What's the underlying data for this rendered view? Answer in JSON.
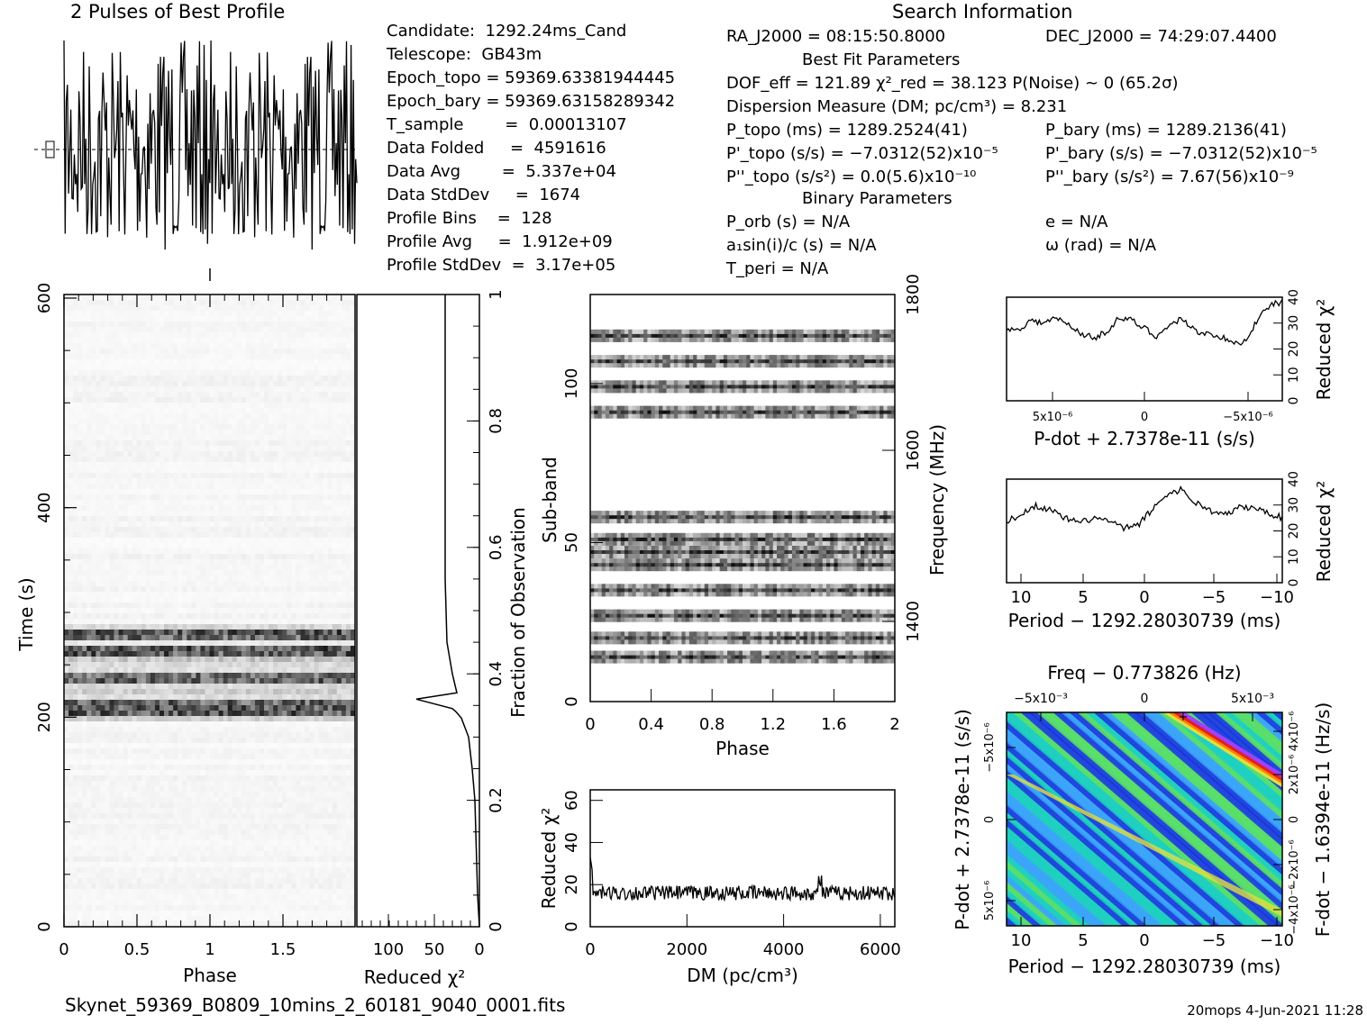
{
  "header": {
    "profile_title": "2 Pulses of Best Profile",
    "search_title": "Search Information",
    "best_fit_title": "Best Fit Parameters",
    "binary_title": "Binary Parameters"
  },
  "info_left": [
    "Candidate:  1292.24ms_Cand",
    "Telescope:  GB43m",
    "Epoch_topo = 59369.63381944445",
    "Epoch_bary = 59369.63158289342",
    "T_sample        =  0.00013107",
    "Data Folded     =  4591616",
    "Data Avg        =  5.337e+04",
    "Data StdDev     =  1674",
    "Profile Bins    =  128",
    "Profile Avg     =  1.912e+09",
    "Profile StdDev  =  3.17e+05"
  ],
  "info_mid": [
    "RA_J2000 = 08:15:50.8000",
    "DOF_eff = 121.89  χ²_red = 38.123  P(Noise) ~ 0   (65.2σ)",
    "Dispersion Measure (DM; pc/cm³) = 8.231",
    "P_topo (ms) =  1289.2524(41)",
    "P'_topo (s/s) = −7.0312(52)x10⁻⁵",
    "P''_topo (s/s²) = 0.0(5.6)x10⁻¹⁰",
    "P_orb (s) = N/A",
    "a₁sin(i)/c (s) = N/A",
    "T_peri = N/A"
  ],
  "info_right": [
    "DEC_J2000 = 74:29:07.4400",
    "P_bary (ms) =  1289.2136(41)",
    "P'_bary (s/s) = −7.0312(52)x10⁻⁵",
    "P''_bary (s/s²) =  7.67(56)x10⁻⁹",
    "e = N/A",
    "ω (rad) = N/A"
  ],
  "footer": {
    "filename": "Skynet_59369_B0809_10mins_2_60181_9040_0001.fits",
    "stamp": "20mops  4-Jun-2021 11:28"
  },
  "chart_data": [
    {
      "id": "profile",
      "type": "line",
      "title": "2 Pulses of Best Profile",
      "xlim": [
        0,
        2
      ],
      "points": 256,
      "description_values": "noise-like profile, two cycles"
    },
    {
      "id": "time-phase",
      "type": "heatmap",
      "xlabel": "Phase",
      "ylabel": "Time (s)",
      "xlim": [
        0,
        2
      ],
      "ylim": [
        0,
        600
      ],
      "x_ticks": [
        "0",
        "0.5",
        "1",
        "1.5"
      ],
      "y_ticks": [
        "0",
        "200",
        "400",
        "600"
      ],
      "bright_rows_s": [
        205,
        215,
        238,
        262,
        278
      ]
    },
    {
      "id": "reduced-chi2-vs-time",
      "type": "line",
      "xlabel": "Reduced χ²",
      "ylabel": "Fraction of Observation",
      "x_ticks": [
        "100",
        "50",
        "0"
      ],
      "y_ticks": [
        "0",
        "0.2",
        "0.4",
        "0.6",
        "0.8",
        "1"
      ],
      "x": [
        0,
        2,
        3,
        4,
        5,
        8,
        12,
        20,
        26,
        30,
        70,
        25,
        30,
        36,
        38,
        38,
        38
      ],
      "y": [
        0,
        0.05,
        0.1,
        0.15,
        0.2,
        0.25,
        0.3,
        0.33,
        0.34,
        0.345,
        0.36,
        0.37,
        0.4,
        0.45,
        0.55,
        0.8,
        1.0
      ]
    },
    {
      "id": "subband-phase",
      "type": "heatmap",
      "xlabel": "Phase",
      "ylabel": "Sub-band",
      "y2label": "Frequency (MHz)",
      "xlim": [
        0,
        2
      ],
      "ylim": [
        0,
        128
      ],
      "x_ticks": [
        "0",
        "0.4",
        "0.8",
        "1.2",
        "1.6",
        "2"
      ],
      "y_ticks": [
        "0",
        "50",
        "100"
      ],
      "y2_ticks": [
        "1400",
        "1600",
        "1800"
      ],
      "bands": [
        14,
        20,
        27,
        35,
        43,
        47,
        51,
        58,
        91,
        99,
        107,
        115
      ]
    },
    {
      "id": "dm-curve",
      "type": "line",
      "xlabel": "DM (pc/cm³)",
      "ylabel": "Reduced χ²",
      "xlim": [
        0,
        6300
      ],
      "ylim": [
        0,
        65
      ],
      "x_ticks": [
        "0",
        "2000",
        "4000",
        "6000"
      ],
      "y_ticks": [
        "0",
        "20",
        "40",
        "60"
      ],
      "baseline": 16
    },
    {
      "id": "pdot-curve",
      "type": "line",
      "xlabel": "P-dot + 2.7378e-11 (s/s)",
      "ylabel": "Reduced χ²",
      "ylim": [
        0,
        40
      ],
      "x_ticks": [
        "5x10⁻⁶",
        "0",
        "−5x10⁻⁶"
      ],
      "y_ticks": [
        "0",
        "10",
        "20",
        "30",
        "40"
      ],
      "values": [
        27,
        28,
        31,
        30,
        32,
        29,
        26,
        24,
        27,
        32,
        31,
        28,
        25,
        29,
        32,
        27,
        26,
        25,
        22,
        23,
        31,
        37,
        38
      ]
    },
    {
      "id": "period-curve",
      "type": "line",
      "xlabel": "Period − 1292.28030739 (ms)",
      "ylabel": "Reduced χ²",
      "ylim": [
        0,
        40
      ],
      "x_ticks": [
        "10",
        "5",
        "0",
        "−5",
        "−10"
      ],
      "y_ticks": [
        "0",
        "10",
        "20",
        "30",
        "40"
      ],
      "values": [
        24,
        26,
        30,
        28,
        25,
        23,
        25,
        24,
        21,
        22,
        28,
        34,
        36,
        31,
        28,
        26,
        29,
        29,
        27,
        25
      ]
    },
    {
      "id": "p-pdot-plane",
      "type": "heatmap",
      "title": "Freq − 0.773826 (Hz)",
      "xlabel": "Period − 1292.28030739 (ms)",
      "ylabel": "P-dot + 2.7378e-11 (s/s)",
      "y2label": "F-dot − 1.6394e-11 (Hz/s)",
      "x_ticks": [
        "10",
        "5",
        "0",
        "−5",
        "−10"
      ],
      "x2_ticks": [
        "−5x10⁻³",
        "0",
        "5x10⁻³"
      ],
      "y_ticks": [
        "5x10⁻⁶",
        "0",
        "−5x10⁻⁶"
      ],
      "y2_ticks": [
        "−4x10⁻⁶",
        "−2x10⁻⁶",
        "0",
        "2x10⁻⁶",
        "4x10⁻⁶"
      ],
      "colors": [
        "#2030e0",
        "#40a0ff",
        "#20d0c0",
        "#60e060",
        "#e0e040",
        "#ff8000",
        "#e02020",
        "#a040ff"
      ]
    }
  ]
}
